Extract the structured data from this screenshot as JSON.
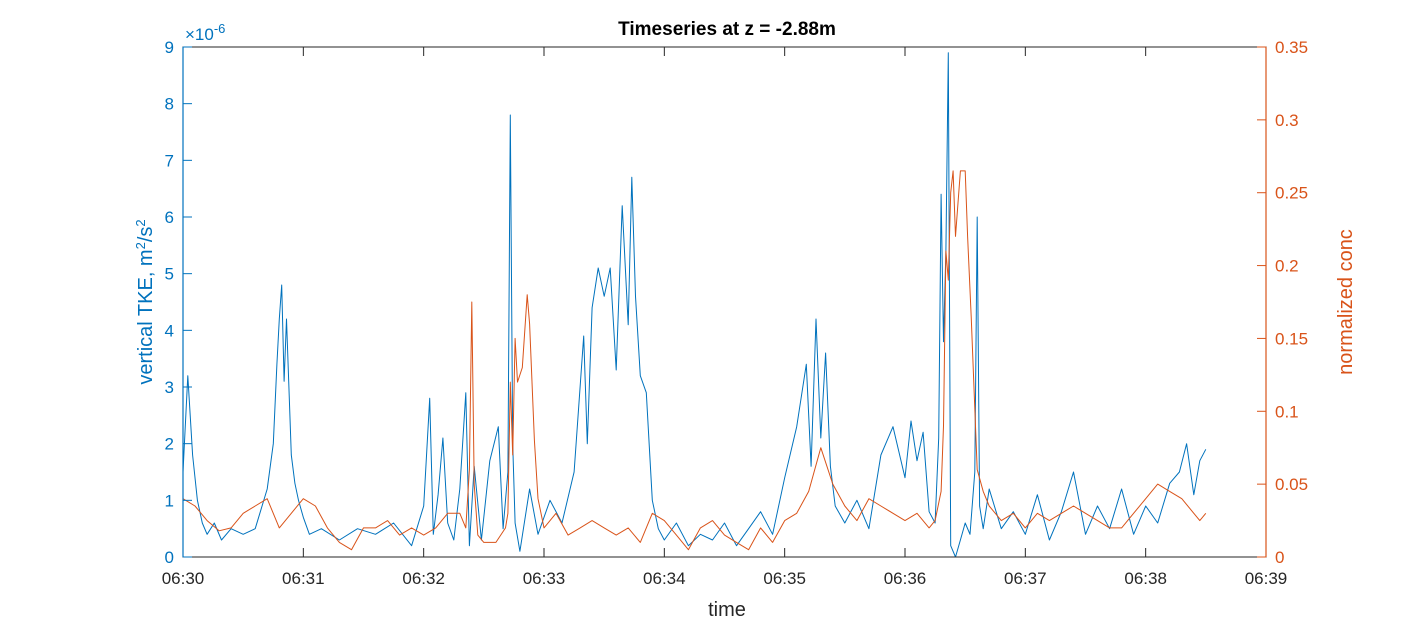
{
  "chart_data": {
    "type": "line",
    "title": "Timeseries at z = -2.88m",
    "xlabel": "time",
    "ylabel_left": "vertical TKE, m²/s²",
    "ylabel_left_main": "vertical TKE, m",
    "ylabel_left_sup1": "2",
    "ylabel_left_mid": "/s",
    "ylabel_left_sup2": "2",
    "ylabel_right": "normalized conc",
    "y_left_exponent_prefix": "×10",
    "y_left_exponent_power": "-6",
    "x_range_minutes": [
      0,
      9
    ],
    "x_ticks": [
      "06:30",
      "06:31",
      "06:32",
      "06:33",
      "06:34",
      "06:35",
      "06:36",
      "06:37",
      "06:38",
      "06:39"
    ],
    "y_left_range": [
      0,
      9
    ],
    "y_left_ticks": [
      "0",
      "1",
      "2",
      "3",
      "4",
      "5",
      "6",
      "7",
      "8",
      "9"
    ],
    "y_right_range": [
      0,
      0.35
    ],
    "y_right_ticks": [
      "0",
      "0.05",
      "0.1",
      "0.15",
      "0.2",
      "0.25",
      "0.3",
      "0.35"
    ],
    "grid": false,
    "colors": {
      "left": "#0072BD",
      "right": "#D95319",
      "axis": "#262626"
    },
    "series": [
      {
        "axis": "left",
        "unit": "1e-6 m^2/s^2",
        "x_minutes": [
          0.0,
          0.04,
          0.08,
          0.12,
          0.16,
          0.2,
          0.26,
          0.32,
          0.4,
          0.5,
          0.6,
          0.7,
          0.75,
          0.78,
          0.8,
          0.82,
          0.84,
          0.86,
          0.88,
          0.9,
          0.93,
          0.96,
          1.0,
          1.05,
          1.15,
          1.3,
          1.45,
          1.6,
          1.75,
          1.9,
          2.0,
          2.05,
          2.08,
          2.12,
          2.16,
          2.2,
          2.25,
          2.3,
          2.35,
          2.38,
          2.42,
          2.48,
          2.55,
          2.62,
          2.66,
          2.7,
          2.72,
          2.74,
          2.76,
          2.8,
          2.88,
          2.95,
          3.05,
          3.15,
          3.25,
          3.3,
          3.33,
          3.36,
          3.4,
          3.45,
          3.5,
          3.55,
          3.6,
          3.65,
          3.7,
          3.73,
          3.76,
          3.8,
          3.85,
          3.9,
          3.95,
          4.0,
          4.1,
          4.2,
          4.3,
          4.4,
          4.5,
          4.6,
          4.7,
          4.8,
          4.9,
          5.0,
          5.1,
          5.18,
          5.22,
          5.26,
          5.3,
          5.34,
          5.38,
          5.42,
          5.5,
          5.6,
          5.7,
          5.8,
          5.9,
          6.0,
          6.05,
          6.1,
          6.15,
          6.2,
          6.25,
          6.28,
          6.3,
          6.32,
          6.34,
          6.36,
          6.38,
          6.42,
          6.46,
          6.5,
          6.54,
          6.58,
          6.6,
          6.62,
          6.65,
          6.7,
          6.8,
          6.9,
          7.0,
          7.1,
          7.2,
          7.3,
          7.4,
          7.5,
          7.6,
          7.7,
          7.8,
          7.9,
          8.0,
          8.1,
          8.2,
          8.28,
          8.34,
          8.4,
          8.45,
          8.5
        ],
        "values": [
          1.5,
          3.2,
          1.8,
          1.0,
          0.6,
          0.4,
          0.6,
          0.3,
          0.5,
          0.4,
          0.5,
          1.2,
          2.0,
          3.4,
          4.2,
          4.8,
          3.1,
          4.2,
          3.0,
          1.8,
          1.3,
          1.0,
          0.7,
          0.4,
          0.5,
          0.3,
          0.5,
          0.4,
          0.6,
          0.2,
          0.9,
          2.8,
          0.4,
          1.1,
          2.1,
          0.6,
          0.3,
          1.2,
          2.9,
          0.2,
          1.6,
          0.3,
          1.7,
          2.3,
          0.5,
          1.5,
          7.8,
          2.0,
          0.6,
          0.1,
          1.2,
          0.4,
          1.0,
          0.6,
          1.5,
          3.0,
          3.9,
          2.0,
          4.4,
          5.1,
          4.6,
          5.1,
          3.3,
          6.2,
          4.1,
          6.7,
          4.6,
          3.2,
          2.9,
          1.0,
          0.5,
          0.3,
          0.6,
          0.2,
          0.4,
          0.3,
          0.6,
          0.2,
          0.5,
          0.8,
          0.4,
          1.4,
          2.3,
          3.4,
          1.6,
          4.2,
          2.1,
          3.6,
          1.6,
          0.9,
          0.6,
          1.0,
          0.5,
          1.8,
          2.3,
          1.4,
          2.4,
          1.7,
          2.2,
          0.8,
          0.6,
          2.1,
          6.4,
          3.8,
          5.4,
          8.9,
          0.2,
          0.0,
          0.3,
          0.6,
          0.4,
          1.5,
          6.0,
          0.9,
          0.5,
          1.2,
          0.5,
          0.8,
          0.4,
          1.1,
          0.3,
          0.8,
          1.5,
          0.4,
          0.9,
          0.5,
          1.2,
          0.4,
          0.9,
          0.6,
          1.3,
          1.5,
          2.0,
          1.1,
          1.7,
          1.9
        ]
      },
      {
        "axis": "right",
        "unit": "normalized",
        "x_minutes": [
          0.0,
          0.1,
          0.2,
          0.3,
          0.4,
          0.5,
          0.6,
          0.7,
          0.8,
          0.9,
          1.0,
          1.1,
          1.2,
          1.3,
          1.4,
          1.5,
          1.6,
          1.7,
          1.8,
          1.9,
          2.0,
          2.1,
          2.2,
          2.3,
          2.35,
          2.38,
          2.4,
          2.42,
          2.45,
          2.5,
          2.6,
          2.68,
          2.7,
          2.72,
          2.74,
          2.76,
          2.78,
          2.82,
          2.86,
          2.88,
          2.9,
          2.92,
          2.95,
          3.0,
          3.1,
          3.2,
          3.3,
          3.4,
          3.5,
          3.6,
          3.7,
          3.8,
          3.9,
          4.0,
          4.1,
          4.2,
          4.3,
          4.4,
          4.5,
          4.6,
          4.7,
          4.8,
          4.9,
          5.0,
          5.1,
          5.2,
          5.3,
          5.4,
          5.5,
          5.6,
          5.7,
          5.8,
          5.9,
          6.0,
          6.1,
          6.2,
          6.25,
          6.3,
          6.32,
          6.34,
          6.36,
          6.38,
          6.4,
          6.42,
          6.46,
          6.5,
          6.52,
          6.55,
          6.6,
          6.65,
          6.7,
          6.8,
          6.9,
          7.0,
          7.1,
          7.2,
          7.3,
          7.4,
          7.5,
          7.6,
          7.7,
          7.8,
          7.9,
          8.0,
          8.1,
          8.2,
          8.3,
          8.4,
          8.45,
          8.5
        ],
        "values": [
          0.04,
          0.035,
          0.025,
          0.018,
          0.02,
          0.03,
          0.035,
          0.04,
          0.02,
          0.03,
          0.04,
          0.035,
          0.02,
          0.01,
          0.005,
          0.02,
          0.02,
          0.025,
          0.015,
          0.02,
          0.015,
          0.02,
          0.03,
          0.03,
          0.02,
          0.06,
          0.175,
          0.05,
          0.015,
          0.01,
          0.01,
          0.02,
          0.03,
          0.12,
          0.07,
          0.15,
          0.12,
          0.13,
          0.18,
          0.16,
          0.12,
          0.08,
          0.04,
          0.02,
          0.03,
          0.015,
          0.02,
          0.025,
          0.02,
          0.015,
          0.02,
          0.01,
          0.03,
          0.025,
          0.015,
          0.005,
          0.02,
          0.025,
          0.015,
          0.01,
          0.005,
          0.02,
          0.01,
          0.025,
          0.03,
          0.045,
          0.075,
          0.05,
          0.035,
          0.025,
          0.04,
          0.035,
          0.03,
          0.025,
          0.03,
          0.02,
          0.025,
          0.045,
          0.09,
          0.21,
          0.19,
          0.25,
          0.265,
          0.22,
          0.265,
          0.265,
          0.22,
          0.165,
          0.06,
          0.045,
          0.035,
          0.025,
          0.03,
          0.02,
          0.03,
          0.025,
          0.03,
          0.035,
          0.03,
          0.025,
          0.02,
          0.02,
          0.03,
          0.04,
          0.05,
          0.045,
          0.04,
          0.03,
          0.025,
          0.03
        ]
      }
    ]
  }
}
